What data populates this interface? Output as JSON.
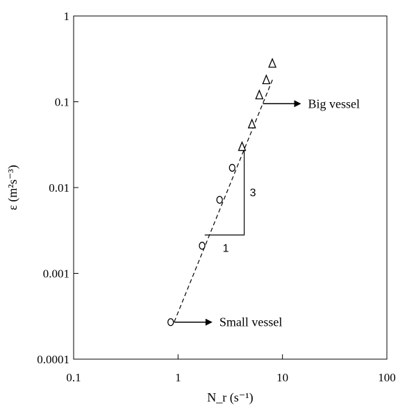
{
  "chart_data": {
    "type": "scatter",
    "x_scale": "log",
    "y_scale": "log",
    "xlim": [
      0.1,
      100
    ],
    "ylim": [
      0.0001,
      1
    ],
    "x_ticks": [
      "0.1",
      "1",
      "10",
      "100"
    ],
    "y_ticks": [
      "0.0001",
      "0.001",
      "0.01",
      "0.1",
      "1"
    ],
    "xlabel": "N_r (s⁻¹)",
    "ylabel": "ε (m²s⁻³)",
    "grid": false,
    "series": [
      {
        "marker": "circle",
        "points": [
          {
            "x": 0.85,
            "y": 0.00027
          },
          {
            "x": 1.7,
            "y": 0.0021
          },
          {
            "x": 2.5,
            "y": 0.0072
          },
          {
            "x": 3.3,
            "y": 0.017
          }
        ]
      },
      {
        "marker": "triangle",
        "points": [
          {
            "x": 4.1,
            "y": 0.03
          },
          {
            "x": 5.1,
            "y": 0.055
          },
          {
            "x": 6.0,
            "y": 0.12
          },
          {
            "x": 7.0,
            "y": 0.18
          },
          {
            "x": 8.0,
            "y": 0.28
          }
        ]
      }
    ],
    "fit_line": {
      "style": "dashed",
      "x_range": [
        0.92,
        8.2
      ],
      "slope": 3,
      "y_at_x1": 0.00035
    },
    "slope_triangle": {
      "run_label": "1",
      "rise_label": "3",
      "x_start": 1.8,
      "x_end": 4.3,
      "y_base": 0.0028
    },
    "annotations": [
      {
        "text": "Big vessel",
        "from_x": 6.5,
        "at_y": 0.095
      },
      {
        "text": "Small vessel",
        "from_x": 0.92,
        "at_y": 0.00027
      }
    ]
  }
}
